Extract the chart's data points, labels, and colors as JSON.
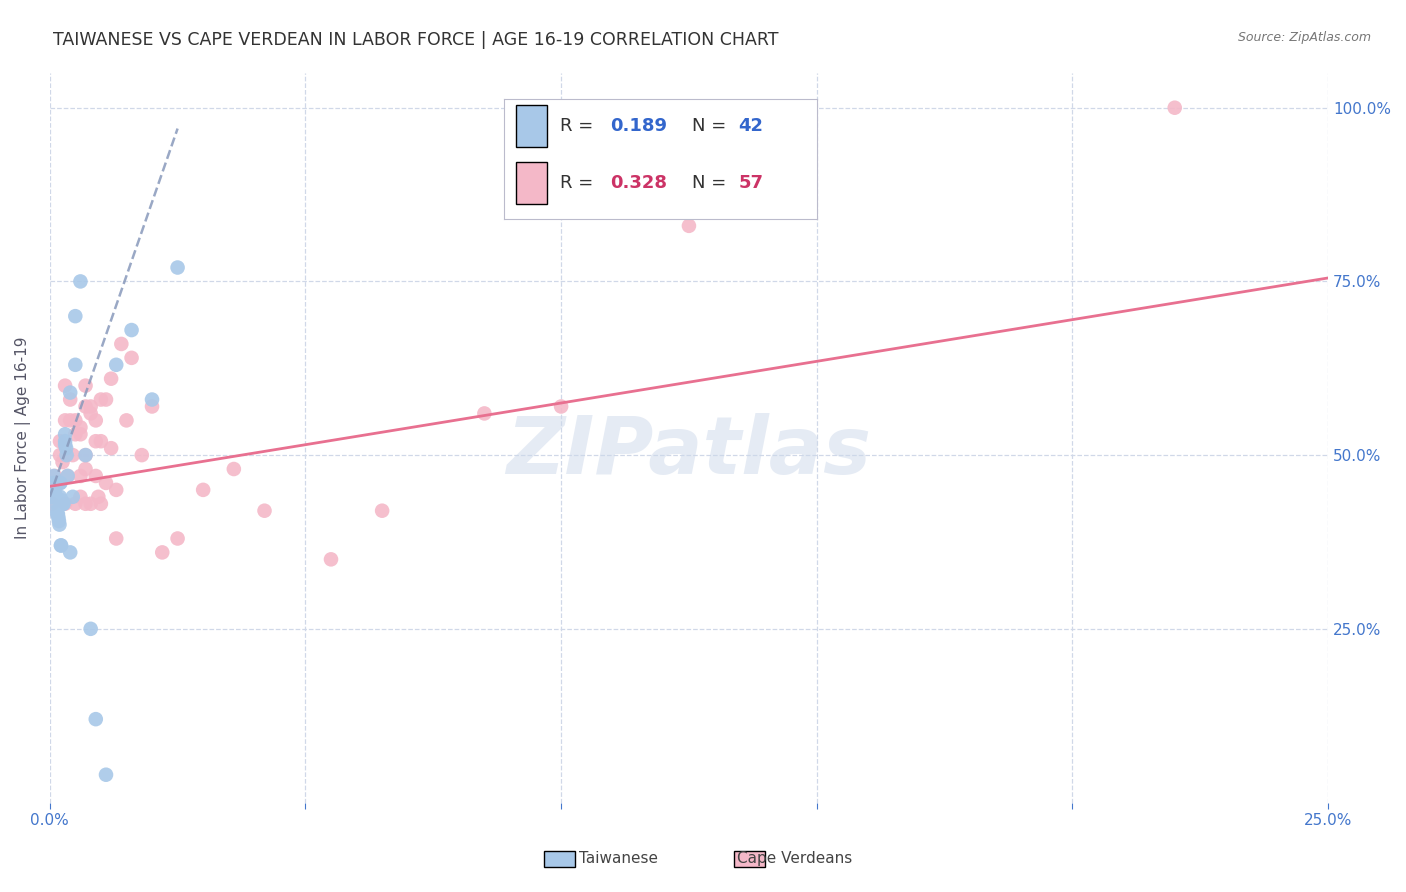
{
  "title": "TAIWANESE VS CAPE VERDEAN IN LABOR FORCE | AGE 16-19 CORRELATION CHART",
  "source": "Source: ZipAtlas.com",
  "ylabel": "In Labor Force | Age 16-19",
  "xlim": [
    0.0,
    0.25
  ],
  "ylim": [
    0.0,
    1.05
  ],
  "xtick_labels": [
    "0.0%",
    "",
    "",
    "",
    "",
    "25.0%"
  ],
  "xtick_vals": [
    0.0,
    0.05,
    0.1,
    0.15,
    0.2,
    0.25
  ],
  "ytick_labels": [
    "25.0%",
    "50.0%",
    "75.0%",
    "100.0%"
  ],
  "ytick_vals": [
    0.25,
    0.5,
    0.75,
    1.0
  ],
  "watermark": "ZIPatlas",
  "taiwanese_R": 0.189,
  "taiwanese_N": 42,
  "capeverdean_R": 0.328,
  "capeverdean_N": 57,
  "blue_color": "#a8c8e8",
  "pink_color": "#f4b8c8",
  "blue_line_color": "#8899bb",
  "pink_line_color": "#e87090",
  "axis_color": "#4477cc",
  "grid_color": "#d0d8e8",
  "title_color": "#333333",
  "taiwanese_x": [
    0.0005,
    0.0007,
    0.0008,
    0.001,
    0.0012,
    0.0013,
    0.0014,
    0.0015,
    0.0016,
    0.0017,
    0.0018,
    0.0019,
    0.002,
    0.002,
    0.0021,
    0.0022,
    0.0022,
    0.0023,
    0.0024,
    0.0025,
    0.0026,
    0.0027,
    0.003,
    0.003,
    0.003,
    0.0032,
    0.0033,
    0.0035,
    0.004,
    0.004,
    0.0045,
    0.005,
    0.005,
    0.006,
    0.007,
    0.008,
    0.009,
    0.011,
    0.013,
    0.016,
    0.02,
    0.025
  ],
  "taiwanese_y": [
    0.44,
    0.46,
    0.47,
    0.445,
    0.44,
    0.43,
    0.42,
    0.415,
    0.415,
    0.41,
    0.405,
    0.4,
    0.44,
    0.46,
    0.46,
    0.37,
    0.37,
    0.435,
    0.43,
    0.43,
    0.43,
    0.43,
    0.53,
    0.52,
    0.515,
    0.51,
    0.5,
    0.47,
    0.59,
    0.36,
    0.44,
    0.7,
    0.63,
    0.75,
    0.5,
    0.25,
    0.12,
    0.04,
    0.63,
    0.68,
    0.58,
    0.77
  ],
  "capeverdean_x": [
    0.0005,
    0.001,
    0.0015,
    0.002,
    0.002,
    0.0025,
    0.003,
    0.003,
    0.003,
    0.0035,
    0.004,
    0.004,
    0.0045,
    0.005,
    0.005,
    0.005,
    0.006,
    0.006,
    0.006,
    0.006,
    0.007,
    0.007,
    0.007,
    0.007,
    0.007,
    0.008,
    0.008,
    0.008,
    0.009,
    0.009,
    0.009,
    0.0095,
    0.01,
    0.01,
    0.01,
    0.011,
    0.011,
    0.012,
    0.012,
    0.013,
    0.013,
    0.014,
    0.015,
    0.016,
    0.018,
    0.02,
    0.022,
    0.025,
    0.03,
    0.036,
    0.042,
    0.055,
    0.065,
    0.085,
    0.1,
    0.125,
    0.22
  ],
  "capeverdean_y": [
    0.43,
    0.47,
    0.46,
    0.52,
    0.5,
    0.49,
    0.6,
    0.55,
    0.43,
    0.47,
    0.58,
    0.55,
    0.5,
    0.55,
    0.53,
    0.43,
    0.54,
    0.53,
    0.47,
    0.44,
    0.6,
    0.57,
    0.5,
    0.48,
    0.43,
    0.57,
    0.56,
    0.43,
    0.55,
    0.52,
    0.47,
    0.44,
    0.58,
    0.52,
    0.43,
    0.58,
    0.46,
    0.61,
    0.51,
    0.38,
    0.45,
    0.66,
    0.55,
    0.64,
    0.5,
    0.57,
    0.36,
    0.38,
    0.45,
    0.48,
    0.42,
    0.35,
    0.42,
    0.56,
    0.57,
    0.83,
    1.0
  ],
  "blue_trendline_x": [
    0.0,
    0.025
  ],
  "blue_trendline_y": [
    0.44,
    0.97
  ],
  "pink_trendline_x": [
    0.0,
    0.25
  ],
  "pink_trendline_y": [
    0.455,
    0.755
  ]
}
